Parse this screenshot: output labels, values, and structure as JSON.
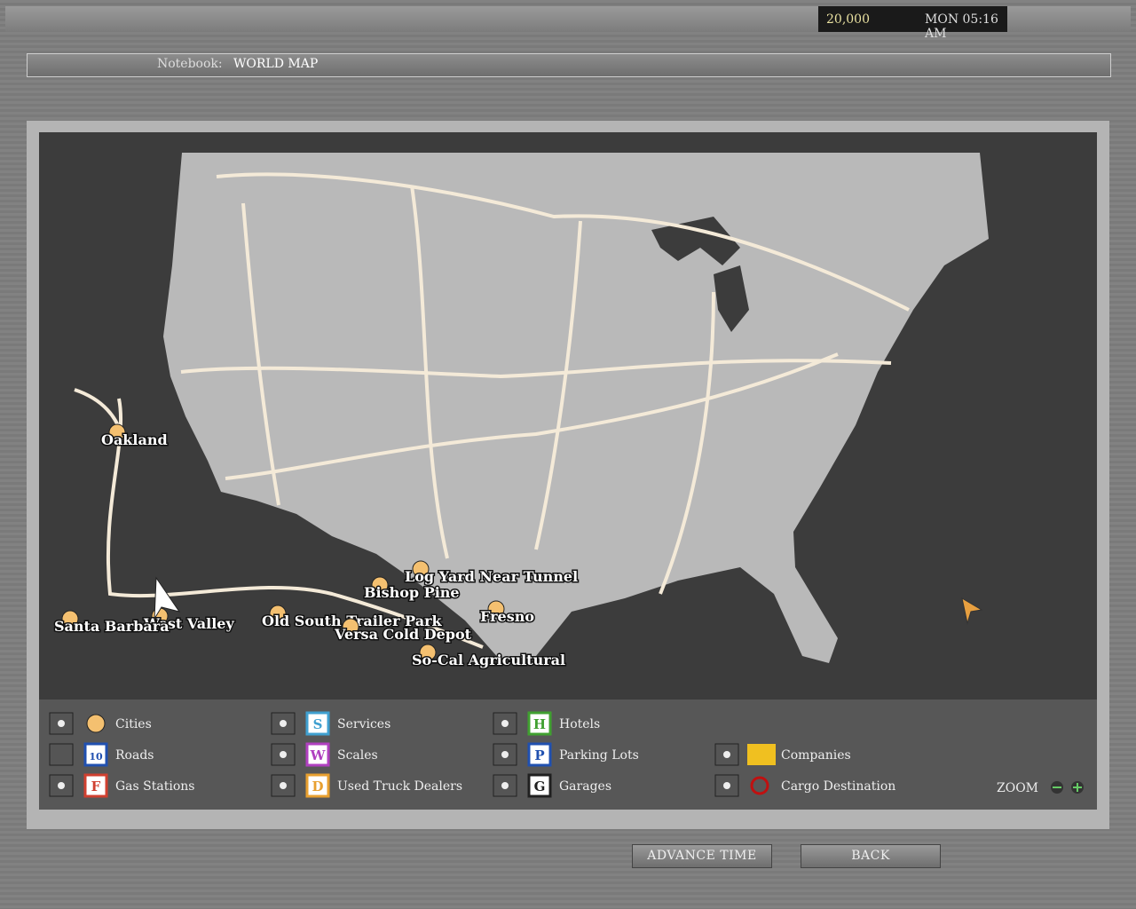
{
  "status": {
    "money": "20,000",
    "time": "MON 05:16 AM"
  },
  "header": {
    "label": "Notebook:",
    "title": "WORLD MAP"
  },
  "map_labels": [
    "Oakland",
    "Log Yard Near Tunnel",
    "Bishop Pine",
    "Fresno",
    "Old South Trailer Park",
    "Versa Cold Depot",
    "So-Cal Agricultural",
    "West Valley",
    "Santa Barbara"
  ],
  "legend": {
    "zoom": "ZOOM",
    "items": [
      {
        "label": "Cities",
        "icon": "",
        "checked": true
      },
      {
        "label": "Roads",
        "icon": "10",
        "checked": false
      },
      {
        "label": "Gas Stations",
        "icon": "F",
        "checked": true
      },
      {
        "label": "Services",
        "icon": "S",
        "checked": true
      },
      {
        "label": "Scales",
        "icon": "W",
        "checked": true
      },
      {
        "label": "Used Truck Dealers",
        "icon": "D",
        "checked": true
      },
      {
        "label": "Hotels",
        "icon": "H",
        "checked": true
      },
      {
        "label": "Parking Lots",
        "icon": "P",
        "checked": true
      },
      {
        "label": "Garages",
        "icon": "G",
        "checked": true
      },
      {
        "label": "Companies",
        "icon": "",
        "checked": true
      },
      {
        "label": "Cargo Destination",
        "icon": "",
        "checked": true
      }
    ]
  },
  "buttons": [
    "ADVANCE TIME",
    "BACK"
  ]
}
